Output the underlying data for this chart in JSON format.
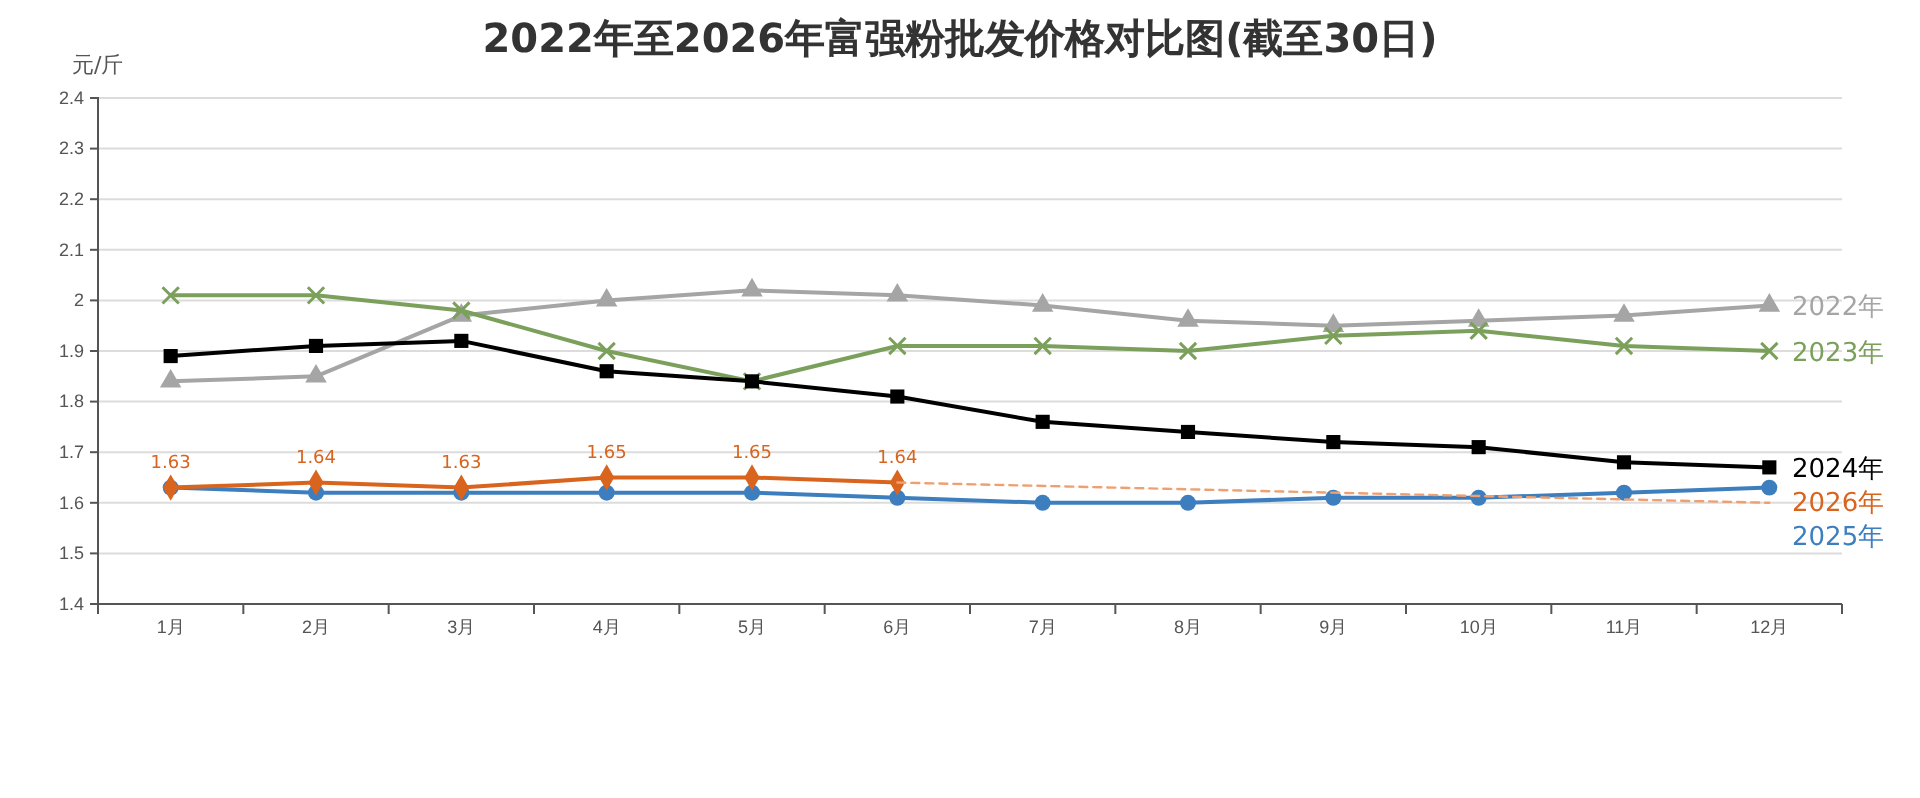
{
  "chart_data": {
    "type": "line",
    "title": "2022年至2026年富强粉批发价格对比图(截至30日)",
    "ylabel": "元/斤",
    "categories": [
      "1月",
      "2月",
      "3月",
      "4月",
      "5月",
      "6月",
      "7月",
      "8月",
      "9月",
      "10月",
      "11月",
      "12月"
    ],
    "ylim": [
      1.4,
      2.4
    ],
    "yticks": [
      1.4,
      1.5,
      1.6,
      1.7,
      1.8,
      1.9,
      2,
      2.1,
      2.2,
      2.3,
      2.4
    ],
    "grid": "y",
    "legend": "right",
    "series": [
      {
        "name": "2022年",
        "color": "#a5a5a5",
        "marker": "triangle",
        "values": [
          1.84,
          1.85,
          1.97,
          2.0,
          2.02,
          2.01,
          1.99,
          1.96,
          1.95,
          1.96,
          1.97,
          1.99
        ]
      },
      {
        "name": "2023年",
        "color": "#7ba05b",
        "marker": "cross",
        "values": [
          2.01,
          2.01,
          1.98,
          1.9,
          1.84,
          1.91,
          1.91,
          1.9,
          1.93,
          1.94,
          1.91,
          1.9
        ]
      },
      {
        "name": "2024年",
        "color": "#000000",
        "marker": "square",
        "values": [
          1.89,
          1.91,
          1.92,
          1.86,
          1.84,
          1.81,
          1.76,
          1.74,
          1.72,
          1.71,
          1.68,
          1.67
        ]
      },
      {
        "name": "2025年",
        "color": "#3d7ebf",
        "marker": "circle",
        "values": [
          1.63,
          1.62,
          1.62,
          1.62,
          1.62,
          1.61,
          1.6,
          1.6,
          1.61,
          1.61,
          1.62,
          1.63
        ]
      },
      {
        "name": "2026年",
        "color": "#d8641e",
        "marker": "diamond",
        "values": [
          1.63,
          1.64,
          1.63,
          1.65,
          1.65,
          1.64,
          null,
          null,
          null,
          null,
          null,
          null
        ],
        "value_labels": [
          "1.63",
          "1.64",
          "1.63",
          "1.65",
          "1.65",
          "1.64",
          null,
          null,
          null,
          null,
          null,
          null
        ]
      },
      {
        "color": "#f0a070",
        "marker": "none",
        "line_style": "dashed",
        "values": [
          null,
          null,
          null,
          null,
          null,
          1.64,
          null,
          null,
          null,
          null,
          null,
          1.6
        ]
      }
    ]
  }
}
